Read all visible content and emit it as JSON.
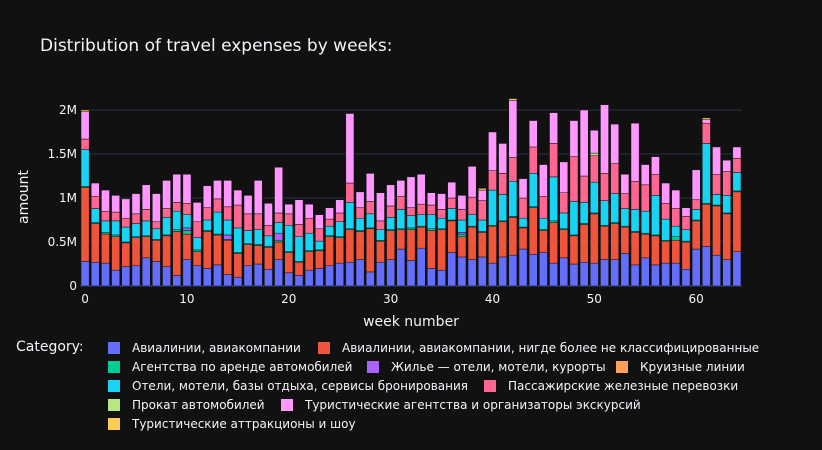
{
  "chart_data": {
    "type": "bar",
    "barmode": "stack",
    "title": "Distribution of travel expenses by weeks:",
    "xlabel": "week number",
    "ylabel": "amount",
    "xlim": [
      -0.5,
      64.5
    ],
    "ylim": [
      0,
      2000000
    ],
    "x_ticks": [
      0,
      10,
      20,
      30,
      40,
      50,
      60
    ],
    "x_tick_labels": [
      "0",
      "10",
      "20",
      "30",
      "40",
      "50",
      "60"
    ],
    "y_ticks": [
      0,
      500000,
      1000000,
      1500000,
      2000000
    ],
    "y_tick_labels": [
      "0",
      "0.5M",
      "1M",
      "1.5M",
      "2M"
    ],
    "grid": true,
    "legend_title": "Category:",
    "legend_position": "bottom",
    "x": [
      0,
      1,
      2,
      3,
      4,
      5,
      6,
      7,
      8,
      9,
      10,
      11,
      12,
      13,
      14,
      15,
      16,
      17,
      18,
      19,
      20,
      21,
      22,
      23,
      24,
      25,
      26,
      27,
      28,
      29,
      30,
      31,
      32,
      33,
      34,
      35,
      36,
      37,
      38,
      39,
      40,
      41,
      42,
      43,
      44,
      45,
      46,
      47,
      48,
      49,
      50,
      51,
      52,
      53,
      54,
      55,
      56,
      57,
      58,
      59,
      60,
      61,
      62,
      63,
      64
    ],
    "series": [
      {
        "name": "Авиалинии, авиакомпании",
        "color": "#636efa",
        "values": [
          280000,
          270000,
          260000,
          180000,
          220000,
          230000,
          320000,
          280000,
          220000,
          120000,
          300000,
          230000,
          200000,
          240000,
          130000,
          100000,
          230000,
          250000,
          190000,
          300000,
          150000,
          120000,
          180000,
          200000,
          230000,
          260000,
          270000,
          300000,
          160000,
          270000,
          300000,
          420000,
          290000,
          430000,
          200000,
          180000,
          380000,
          330000,
          300000,
          330000,
          260000,
          330000,
          350000,
          420000,
          360000,
          380000,
          260000,
          320000,
          250000,
          270000,
          260000,
          300000,
          300000,
          370000,
          240000,
          320000,
          240000,
          260000,
          260000,
          190000,
          420000,
          450000,
          350000,
          300000,
          390000
        ]
      },
      {
        "name": "Авиалинии, авиакомпании, нигде более не классифицированные",
        "color": "#ef553b",
        "values": [
          840000,
          440000,
          330000,
          380000,
          270000,
          320000,
          240000,
          240000,
          350000,
          500000,
          290000,
          160000,
          420000,
          340000,
          390000,
          270000,
          240000,
          210000,
          250000,
          200000,
          230000,
          150000,
          210000,
          200000,
          330000,
          290000,
          370000,
          320000,
          490000,
          240000,
          330000,
          220000,
          350000,
          240000,
          430000,
          460000,
          360000,
          230000,
          370000,
          280000,
          420000,
          400000,
          430000,
          240000,
          530000,
          250000,
          460000,
          320000,
          320000,
          430000,
          560000,
          380000,
          410000,
          300000,
          370000,
          270000,
          330000,
          250000,
          260000,
          310000,
          320000,
          480000,
          560000,
          520000,
          680000
        ]
      },
      {
        "name": "Агентства по аренде автомобилей",
        "color": "#00cc96",
        "values": [
          10000,
          10000,
          20000,
          20000,
          10000,
          10000,
          10000,
          10000,
          10000,
          20000,
          40000,
          20000,
          10000,
          10000,
          10000,
          10000,
          10000,
          10000,
          10000,
          20000,
          10000,
          10000,
          10000,
          10000,
          10000,
          10000,
          10000,
          10000,
          10000,
          10000,
          10000,
          10000,
          20000,
          10000,
          20000,
          10000,
          10000,
          30000,
          10000,
          10000,
          10000,
          10000,
          10000,
          10000,
          10000,
          10000,
          20000,
          10000,
          10000,
          10000,
          10000,
          10000,
          10000,
          10000,
          10000,
          10000,
          10000,
          10000,
          40000,
          10000,
          10000,
          10000,
          10000,
          10000,
          10000
        ]
      },
      {
        "name": "Жилье — отели, мотели, курорты",
        "color": "#ab63fa",
        "values": [
          0,
          0,
          0,
          0,
          0,
          0,
          0,
          0,
          0,
          0,
          30000,
          0,
          0,
          0,
          50000,
          0,
          0,
          0,
          0,
          80000,
          0,
          0,
          0,
          0,
          0,
          0,
          0,
          0,
          0,
          0,
          0,
          0,
          0,
          0,
          0,
          0,
          0,
          20000,
          0,
          0,
          0,
          0,
          0,
          0,
          0,
          0,
          0,
          0,
          0,
          0,
          0,
          0,
          0,
          0,
          0,
          0,
          0,
          0,
          0,
          0,
          0,
          0,
          0,
          0,
          0
        ]
      },
      {
        "name": "Круизные линии",
        "color": "#ffa15a",
        "values": [
          0,
          0,
          0,
          0,
          0,
          0,
          0,
          0,
          0,
          0,
          0,
          0,
          0,
          0,
          0,
          0,
          0,
          0,
          0,
          0,
          0,
          0,
          0,
          0,
          0,
          0,
          0,
          0,
          0,
          0,
          0,
          0,
          0,
          0,
          0,
          0,
          0,
          0,
          0,
          0,
          0,
          0,
          0,
          0,
          0,
          0,
          0,
          0,
          0,
          0,
          0,
          0,
          0,
          0,
          0,
          0,
          0,
          0,
          0,
          0,
          0,
          0,
          0,
          0,
          0
        ]
      },
      {
        "name": "Отели, мотели, базы отдыха, сервисы бронирования",
        "color": "#19d3f3",
        "values": [
          420000,
          160000,
          130000,
          160000,
          170000,
          150000,
          170000,
          120000,
          200000,
          210000,
          150000,
          140000,
          120000,
          250000,
          170000,
          280000,
          150000,
          170000,
          120000,
          120000,
          300000,
          280000,
          200000,
          100000,
          110000,
          170000,
          300000,
          140000,
          160000,
          120000,
          140000,
          220000,
          140000,
          130000,
          160000,
          120000,
          130000,
          140000,
          130000,
          130000,
          400000,
          300000,
          400000,
          100000,
          380000,
          130000,
          500000,
          180000,
          380000,
          240000,
          350000,
          280000,
          330000,
          200000,
          250000,
          250000,
          450000,
          240000,
          120000,
          130000,
          120000,
          680000,
          120000,
          200000,
          210000
        ]
      },
      {
        "name": "Пассажирские железные перевозки",
        "color": "#ff6692",
        "values": [
          120000,
          140000,
          110000,
          100000,
          100000,
          110000,
          130000,
          80000,
          100000,
          100000,
          130000,
          180000,
          140000,
          150000,
          150000,
          260000,
          190000,
          180000,
          120000,
          110000,
          130000,
          140000,
          170000,
          140000,
          80000,
          100000,
          220000,
          120000,
          140000,
          100000,
          130000,
          150000,
          90000,
          120000,
          110000,
          100000,
          120000,
          120000,
          200000,
          220000,
          220000,
          240000,
          270000,
          230000,
          300000,
          250000,
          380000,
          230000,
          510000,
          300000,
          300000,
          310000,
          340000,
          170000,
          320000,
          300000,
          240000,
          180000,
          200000,
          150000,
          110000,
          230000,
          230000,
          270000,
          160000
        ]
      },
      {
        "name": "Прокат автомобилей",
        "color": "#b6e880",
        "values": [
          0,
          0,
          0,
          0,
          0,
          0,
          0,
          0,
          0,
          0,
          0,
          0,
          0,
          0,
          0,
          0,
          0,
          0,
          0,
          0,
          0,
          0,
          0,
          0,
          0,
          0,
          0,
          0,
          0,
          0,
          0,
          0,
          0,
          0,
          0,
          0,
          0,
          0,
          0,
          0,
          0,
          0,
          0,
          0,
          0,
          0,
          0,
          0,
          0,
          0,
          30000,
          0,
          0,
          0,
          0,
          0,
          0,
          0,
          0,
          0,
          0,
          0,
          0,
          0,
          0
        ]
      },
      {
        "name": "Туристические агентства и организаторы экскурсий",
        "color": "#ff97ff",
        "values": [
          310000,
          150000,
          240000,
          190000,
          220000,
          230000,
          280000,
          320000,
          320000,
          320000,
          330000,
          220000,
          250000,
          210000,
          300000,
          170000,
          210000,
          380000,
          250000,
          520000,
          110000,
          280000,
          160000,
          160000,
          130000,
          150000,
          790000,
          180000,
          320000,
          320000,
          240000,
          180000,
          350000,
          340000,
          140000,
          180000,
          180000,
          160000,
          350000,
          120000,
          440000,
          340000,
          650000,
          220000,
          300000,
          360000,
          350000,
          350000,
          410000,
          750000,
          260000,
          780000,
          450000,
          220000,
          660000,
          230000,
          200000,
          230000,
          210000,
          100000,
          340000,
          40000,
          310000,
          130000,
          130000
        ]
      },
      {
        "name": "Туристические аттракционы и шоу",
        "color": "#fecb52",
        "values": [
          20000,
          0,
          0,
          0,
          0,
          0,
          0,
          0,
          0,
          0,
          0,
          0,
          0,
          0,
          0,
          0,
          0,
          0,
          0,
          0,
          0,
          0,
          0,
          0,
          0,
          0,
          0,
          0,
          0,
          0,
          0,
          0,
          0,
          0,
          0,
          0,
          0,
          0,
          0,
          20000,
          0,
          0,
          20000,
          0,
          0,
          0,
          0,
          0,
          0,
          0,
          0,
          0,
          0,
          0,
          0,
          0,
          0,
          0,
          0,
          0,
          0,
          20000,
          0,
          0,
          0
        ]
      }
    ]
  }
}
